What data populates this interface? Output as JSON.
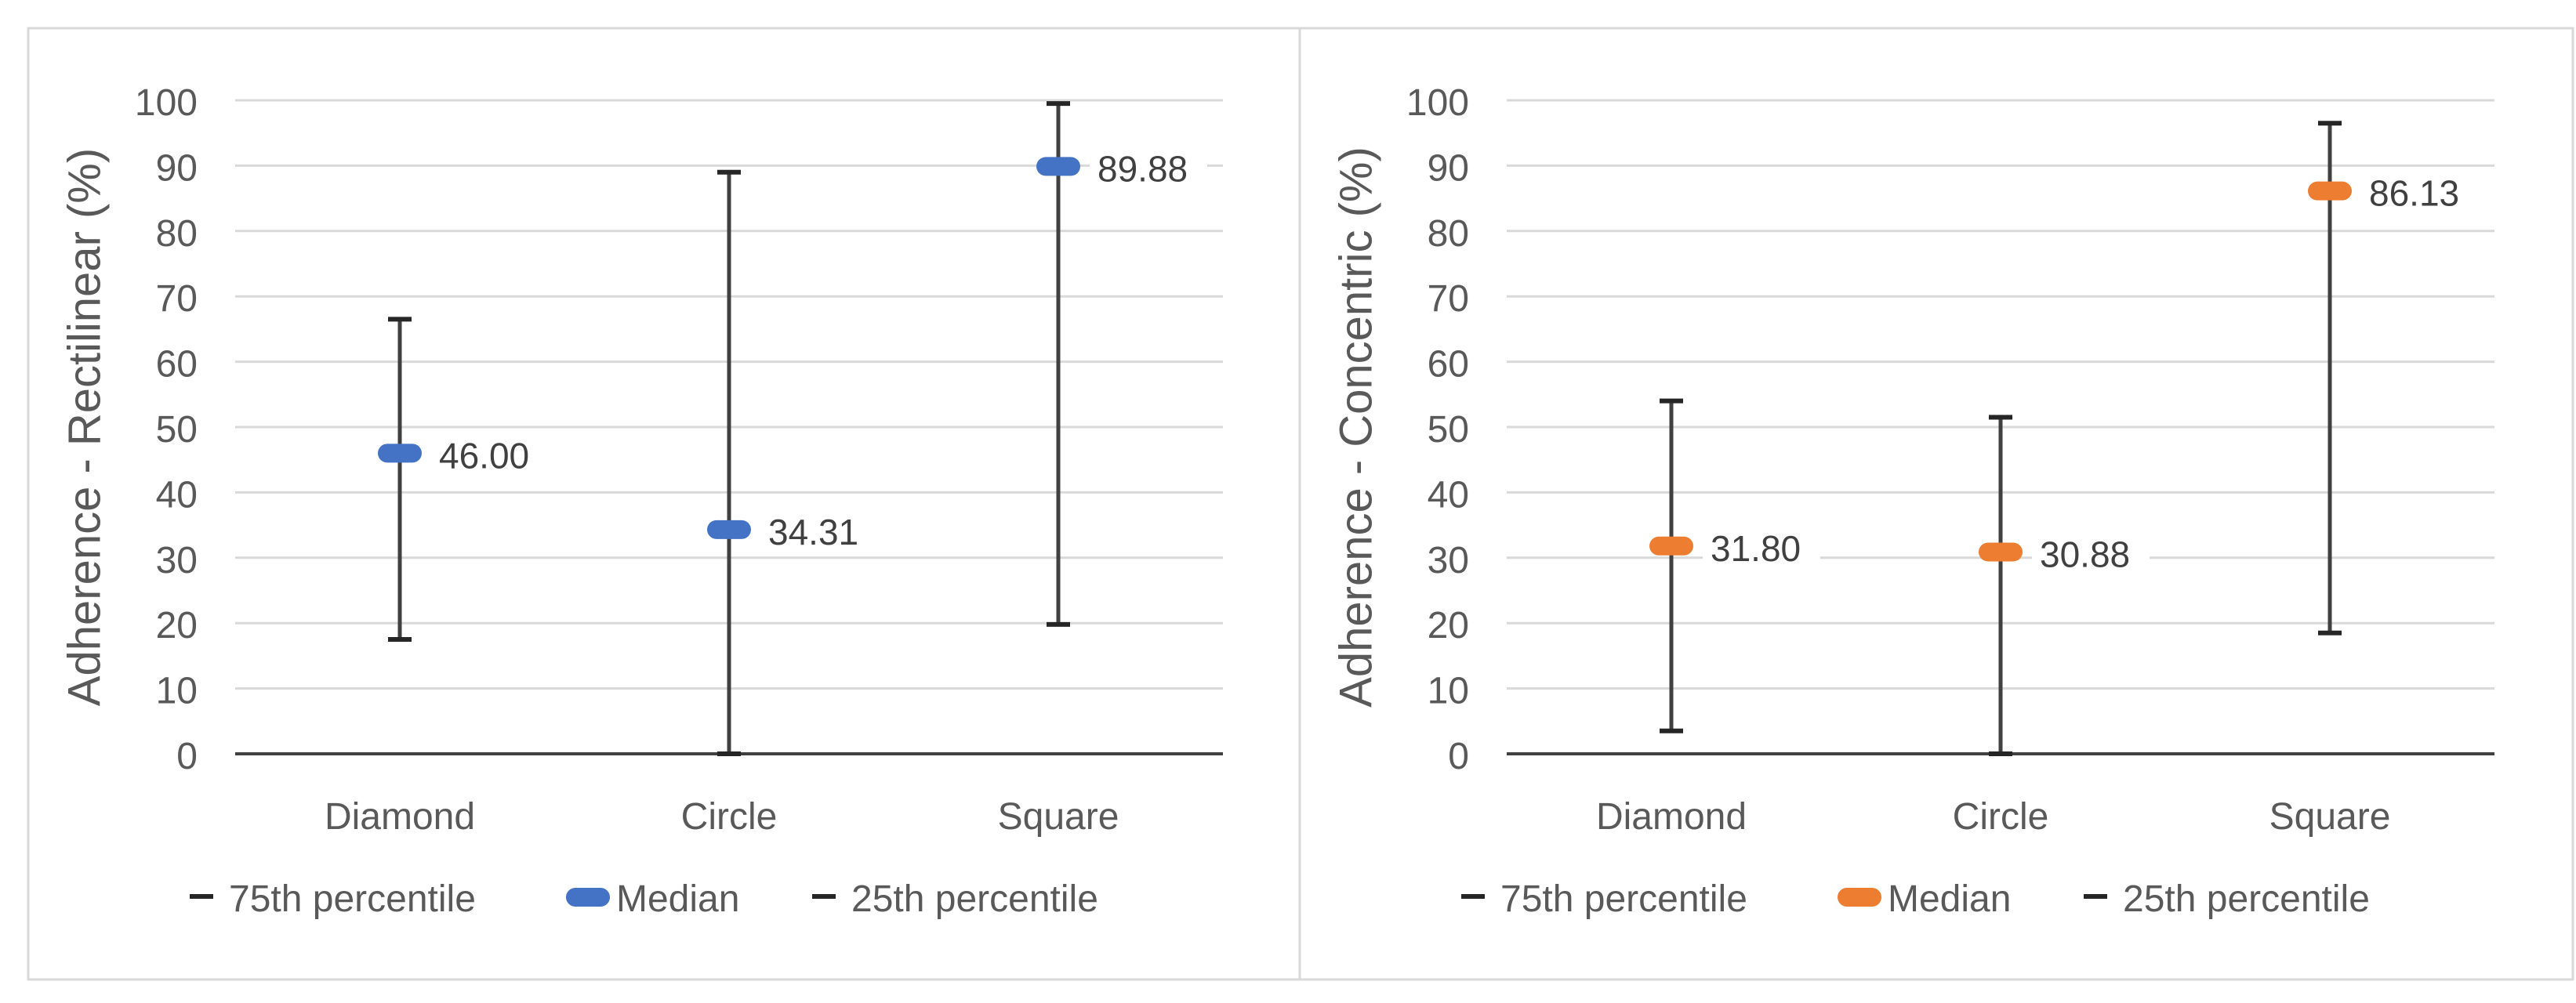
{
  "chart_data": [
    {
      "type": "error-bar",
      "title": "",
      "xlabel": "",
      "ylabel": "Adherence - Rectilinear (%)",
      "ylim": [
        0,
        100
      ],
      "yticks": [
        0,
        10,
        20,
        30,
        40,
        50,
        60,
        70,
        80,
        90,
        100
      ],
      "grid": true,
      "categories": [
        "Diamond",
        "Circle",
        "Square"
      ],
      "series": [
        {
          "name": "75th percentile",
          "values": [
            66.5,
            89.0,
            99.5
          ]
        },
        {
          "name": "Median",
          "values": [
            46.0,
            34.31,
            89.88
          ]
        },
        {
          "name": "25th percentile",
          "values": [
            17.5,
            0.0,
            19.8
          ]
        }
      ],
      "data_labels": [
        "46.00",
        "34.31",
        "89.88"
      ],
      "median_color": "#4472C4",
      "legend": [
        "75th percentile",
        "Median",
        "25th percentile"
      ],
      "legend_position": "bottom"
    },
    {
      "type": "error-bar",
      "title": "",
      "xlabel": "",
      "ylabel": "Adherence - Concentric (%)",
      "ylim": [
        0,
        100
      ],
      "yticks": [
        0,
        10,
        20,
        30,
        40,
        50,
        60,
        70,
        80,
        90,
        100
      ],
      "grid": true,
      "categories": [
        "Diamond",
        "Circle",
        "Square"
      ],
      "series": [
        {
          "name": "75th percentile",
          "values": [
            54.0,
            51.5,
            96.5
          ]
        },
        {
          "name": "Median",
          "values": [
            31.8,
            30.88,
            86.13
          ]
        },
        {
          "name": "25th percentile",
          "values": [
            3.5,
            0.0,
            18.5
          ]
        }
      ],
      "data_labels": [
        "31.80",
        "30.88",
        "86.13"
      ],
      "median_color": "#ED7D31",
      "legend": [
        "75th percentile",
        "Median",
        "25th percentile"
      ],
      "legend_position": "bottom"
    }
  ]
}
